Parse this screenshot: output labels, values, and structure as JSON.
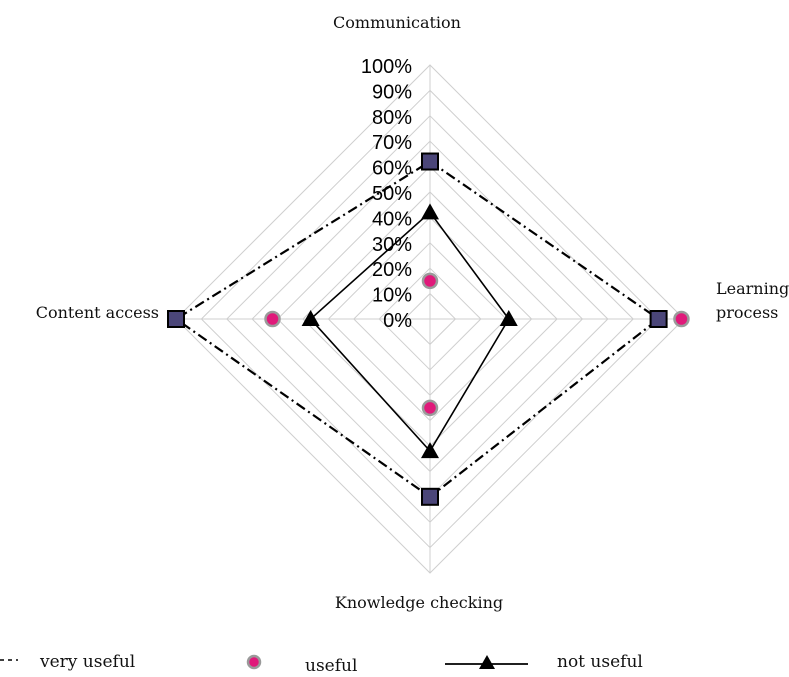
{
  "chart_data": {
    "type": "radar",
    "categories": [
      "Communication",
      "Learning process",
      "Knowledge checking",
      "Content access"
    ],
    "category_label_lines": [
      [
        "Communication"
      ],
      [
        "Learning",
        "process"
      ],
      [
        "Knowledge checking"
      ],
      [
        "Content access"
      ]
    ],
    "ticks": [
      "0%",
      "10%",
      "20%",
      "30%",
      "40%",
      "50%",
      "60%",
      "70%",
      "80%",
      "90%",
      "100%"
    ],
    "rlim": [
      0,
      100
    ],
    "grid": true,
    "legend_position": "bottom",
    "series": [
      {
        "name": "very useful",
        "values": [
          62,
          90,
          70,
          100
        ],
        "marker": "square",
        "line": "dash-dot",
        "color": "#4b4679"
      },
      {
        "name": "useful",
        "values": [
          15,
          99,
          35,
          62
        ],
        "marker": "circle",
        "line": "none",
        "color": "#e0197a"
      },
      {
        "name": "not useful",
        "values": [
          42,
          31,
          52,
          47
        ],
        "marker": "triangle",
        "line": "solid",
        "color": "#000000"
      }
    ]
  }
}
